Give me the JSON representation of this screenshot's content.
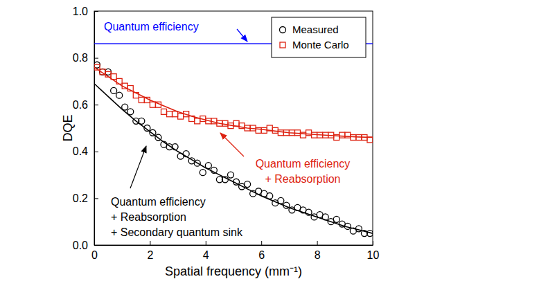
{
  "chart_data": {
    "type": "scatter",
    "x_label": "Spatial frequency (mm⁻¹)",
    "y_label": "DQE",
    "xlim": [
      0,
      10
    ],
    "ylim": [
      0,
      1
    ],
    "xticks": [
      0,
      2,
      4,
      6,
      8,
      10
    ],
    "yticks": [
      {
        "value": 0,
        "label": "0.0"
      },
      0.2,
      0.4,
      0.6,
      0.8,
      {
        "value": 1,
        "label": "1.0"
      }
    ],
    "grid": false,
    "legend": "upper right",
    "series": [
      {
        "type": "line",
        "color": "#0000ff",
        "line_style": "solid",
        "x": [
          0,
          10
        ],
        "values": [
          0.86,
          0.86
        ]
      },
      {
        "name": "Measured",
        "type": "scatter",
        "marker": "circle",
        "color": "#000000",
        "x": [
          0.1,
          0.3,
          0.5,
          0.7,
          0.9,
          1.1,
          1.3,
          1.5,
          1.7,
          1.9,
          2.1,
          2.3,
          2.5,
          2.7,
          2.9,
          3.1,
          3.3,
          3.5,
          3.7,
          3.9,
          4.1,
          4.3,
          4.5,
          4.7,
          4.9,
          5.1,
          5.3,
          5.5,
          5.7,
          5.9,
          6.1,
          6.3,
          6.5,
          6.7,
          6.9,
          7.1,
          7.3,
          7.5,
          7.7,
          7.9,
          8.1,
          8.3,
          8.5,
          8.7,
          8.9,
          9.1,
          9.3,
          9.5,
          9.7,
          9.9
        ],
        "values": [
          0.77,
          0.74,
          0.74,
          0.66,
          0.64,
          0.59,
          0.57,
          0.53,
          0.53,
          0.5,
          0.48,
          0.46,
          0.43,
          0.42,
          0.42,
          0.38,
          0.39,
          0.36,
          0.35,
          0.31,
          0.34,
          0.32,
          0.28,
          0.28,
          0.3,
          0.27,
          0.25,
          0.26,
          0.22,
          0.23,
          0.22,
          0.21,
          0.18,
          0.19,
          0.17,
          0.15,
          0.16,
          0.15,
          0.14,
          0.12,
          0.13,
          0.12,
          0.1,
          0.11,
          0.09,
          0.08,
          0.06,
          0.07,
          0.05,
          0.05
        ]
      },
      {
        "name": "Monte Carlo",
        "type": "scatter",
        "marker": "square",
        "color": "#dd2211",
        "x": [
          0.1,
          0.3,
          0.5,
          0.7,
          0.9,
          1.1,
          1.3,
          1.5,
          1.7,
          1.9,
          2.1,
          2.3,
          2.5,
          2.7,
          2.9,
          3.1,
          3.3,
          3.5,
          3.7,
          3.9,
          4.1,
          4.3,
          4.5,
          4.7,
          4.9,
          5.1,
          5.3,
          5.5,
          5.7,
          5.9,
          6.1,
          6.3,
          6.5,
          6.7,
          6.9,
          7.1,
          7.3,
          7.5,
          7.7,
          7.9,
          8.1,
          8.3,
          8.5,
          8.7,
          8.9,
          9.1,
          9.3,
          9.5,
          9.7,
          9.9
        ],
        "values": [
          0.76,
          0.74,
          0.73,
          0.72,
          0.7,
          0.68,
          0.67,
          0.64,
          0.62,
          0.62,
          0.6,
          0.6,
          0.57,
          0.56,
          0.56,
          0.55,
          0.56,
          0.54,
          0.53,
          0.54,
          0.53,
          0.53,
          0.52,
          0.52,
          0.51,
          0.52,
          0.51,
          0.5,
          0.5,
          0.49,
          0.49,
          0.5,
          0.49,
          0.48,
          0.48,
          0.48,
          0.48,
          0.47,
          0.48,
          0.47,
          0.47,
          0.47,
          0.47,
          0.46,
          0.47,
          0.47,
          0.46,
          0.46,
          0.46,
          0.45
        ]
      },
      {
        "type": "line",
        "color": "#dd2211",
        "line_style": "solid",
        "x": [
          0,
          0.5,
          1,
          1.5,
          2,
          2.5,
          3,
          3.5,
          4,
          4.5,
          5,
          5.5,
          6,
          6.5,
          7,
          7.5,
          8,
          8.5,
          9,
          9.5,
          10
        ],
        "values": [
          0.76,
          0.72,
          0.68,
          0.65,
          0.62,
          0.595,
          0.57,
          0.55,
          0.535,
          0.52,
          0.51,
          0.5,
          0.495,
          0.487,
          0.48,
          0.476,
          0.472,
          0.468,
          0.465,
          0.462,
          0.46
        ]
      },
      {
        "type": "line",
        "color": "#000000",
        "line_style": "solid",
        "x": [
          0,
          0.5,
          1,
          1.5,
          2,
          2.5,
          3,
          3.5,
          4,
          4.5,
          5,
          5.5,
          6,
          6.5,
          7,
          7.5,
          8,
          8.5,
          9,
          9.5,
          10
        ],
        "values": [
          0.69,
          0.635,
          0.58,
          0.53,
          0.485,
          0.44,
          0.4,
          0.365,
          0.33,
          0.3,
          0.27,
          0.24,
          0.21,
          0.185,
          0.16,
          0.14,
          0.12,
          0.1,
          0.08,
          0.065,
          0.05
        ]
      }
    ],
    "annotations": [
      {
        "text": [
          "Quantum efficiency"
        ]
      },
      {
        "text": [
          "Quantum efficiency",
          "+ Reabsorption"
        ]
      },
      {
        "text": [
          "Quantum efficiency",
          "+ Reabsorption",
          "+ Secondary quantum sink"
        ]
      }
    ]
  }
}
